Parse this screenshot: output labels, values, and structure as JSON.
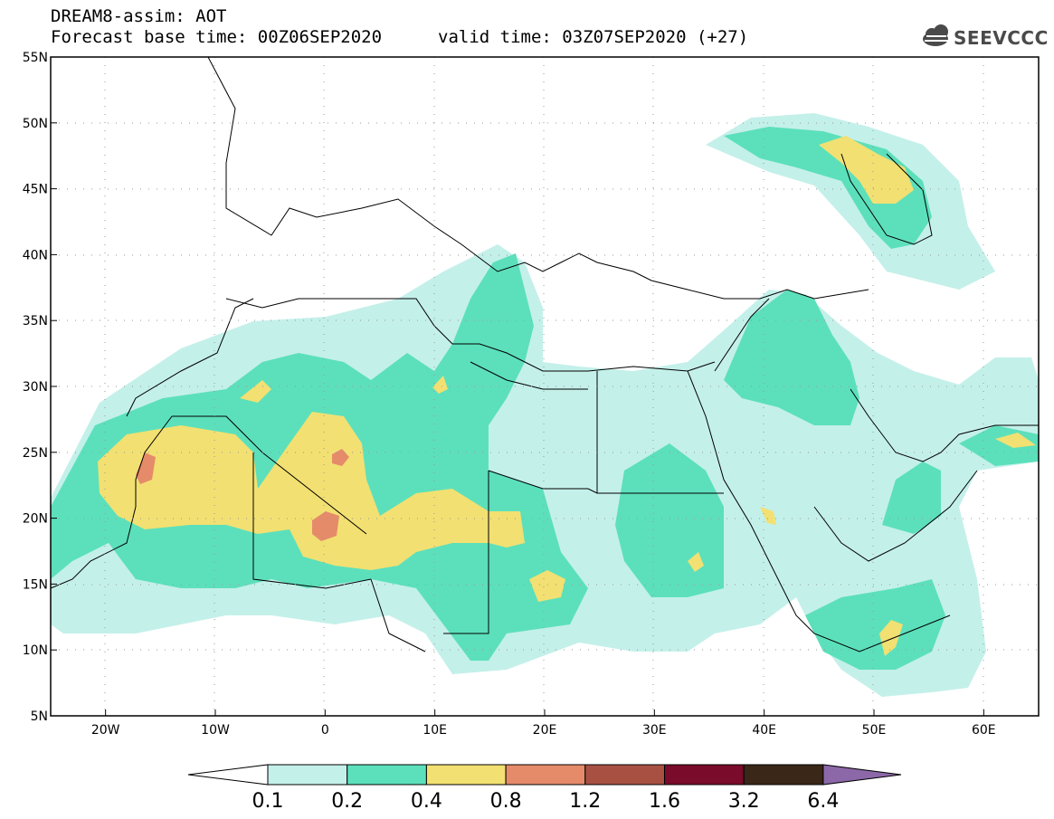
{
  "header": {
    "title_line1": "DREAM8-assim: AOT",
    "title_line2": "Forecast base time: 00Z06SEP2020",
    "valid_time": "valid time: 03Z07SEP2020 (+27)",
    "logo_text": "SEEVCCC"
  },
  "map": {
    "lat_labels": [
      "55N",
      "50N",
      "45N",
      "40N",
      "35N",
      "30N",
      "25N",
      "20N",
      "15N",
      "10N",
      "5N"
    ],
    "lon_labels": [
      "20W",
      "10W",
      "0",
      "10E",
      "20E",
      "30E",
      "40E",
      "50E",
      "60E"
    ],
    "extent": {
      "lon_min": -25,
      "lon_max": 65,
      "lat_min": 5,
      "lat_max": 55
    }
  },
  "colorbar": {
    "levels": [
      "0.1",
      "0.2",
      "0.4",
      "0.8",
      "1.2",
      "1.6",
      "3.2",
      "6.4"
    ],
    "colors": [
      "#c4f0ea",
      "#5ce0bb",
      "#f2e072",
      "#e58b6a",
      "#a85143",
      "#7a0b2a",
      "#3a2718",
      "#8c68a8"
    ],
    "under_color": "#ffffff"
  }
}
